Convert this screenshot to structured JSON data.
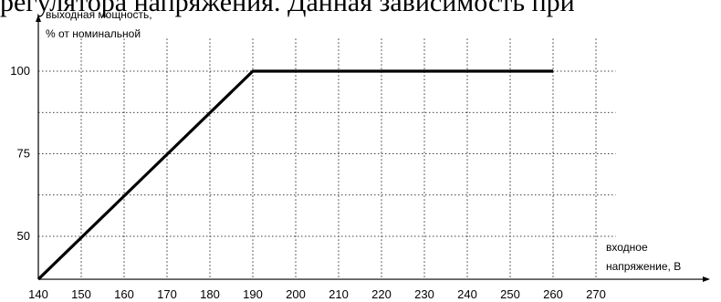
{
  "caption": "регулятора напряжения. Данная зависимость при",
  "chart_data": {
    "type": "line",
    "ylabel": "выходная мощность,",
    "ylabel_line2": "% от номинальной",
    "xlabel": "входное",
    "xlabel_line2": "напряжение, В",
    "xlim": [
      140,
      275
    ],
    "ylim": [
      37,
      109
    ],
    "x_ticks": [
      140,
      150,
      160,
      170,
      180,
      190,
      200,
      210,
      220,
      230,
      240,
      250,
      260,
      270
    ],
    "y_ticks": [
      50,
      75,
      100
    ],
    "y_gridlines": [
      50,
      62.5,
      75,
      87.5,
      100
    ],
    "grid": true,
    "grid_style": "dotted",
    "series": [
      {
        "x": [
          140,
          190,
          260
        ],
        "y": [
          37,
          100,
          100
        ]
      }
    ],
    "colors": {
      "line": "#000000",
      "grid": "#000000",
      "axes": "#000000"
    }
  }
}
